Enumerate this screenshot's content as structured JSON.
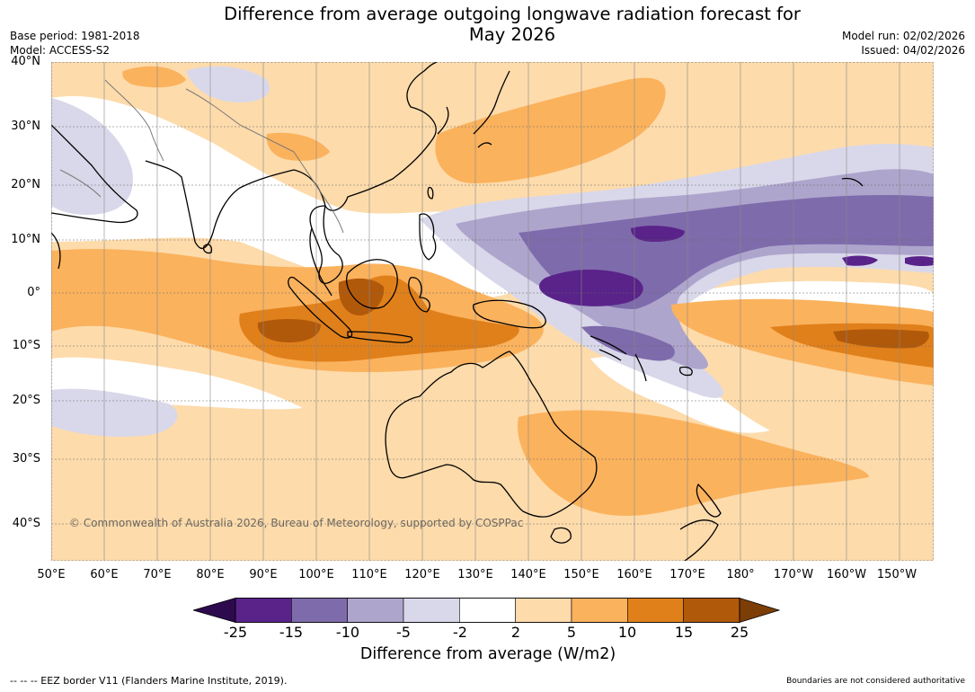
{
  "title_line1": "Difference from average outgoing longwave radiation forecast for",
  "title_line2": "May 2026",
  "base_period": "Base period: 1981-2018",
  "model": "Model: ACCESS-S2",
  "model_run": "Model run: 02/02/2026",
  "issued": "Issued: 04/02/2026",
  "copyright": "© Commonwealth of Australia 2026, Bureau of Meteorology, supported by COSPPac",
  "lat_labels": [
    "40°N",
    "30°N",
    "20°N",
    "10°N",
    "0°",
    "10°S",
    "20°S",
    "30°S",
    "40°S"
  ],
  "lon_labels": [
    "50°E",
    "60°E",
    "70°E",
    "80°E",
    "90°E",
    "100°E",
    "110°E",
    "120°E",
    "130°E",
    "140°E",
    "150°E",
    "160°E",
    "170°E",
    "180°",
    "170°W",
    "160°W",
    "150°W"
  ],
  "colorbar": {
    "ticks": [
      "-25",
      "-15",
      "-10",
      "-5",
      "-2",
      "2",
      "5",
      "10",
      "15",
      "25"
    ],
    "colors": [
      "#59238a",
      "#7e6bab",
      "#aea5cd",
      "#d9d8ea",
      "#ffffff",
      "#fddbab",
      "#fbb25d",
      "#e0801b",
      "#b1590b"
    ],
    "under_color": "#2d0a4e",
    "over_color": "#7d3d07",
    "title": "Difference from average (W/m2)"
  },
  "footer_left": "--  --  -- EEZ border V11 (Flanders Marine Institute, 2019).",
  "footer_right": "Boundaries are not considered authoritative"
}
